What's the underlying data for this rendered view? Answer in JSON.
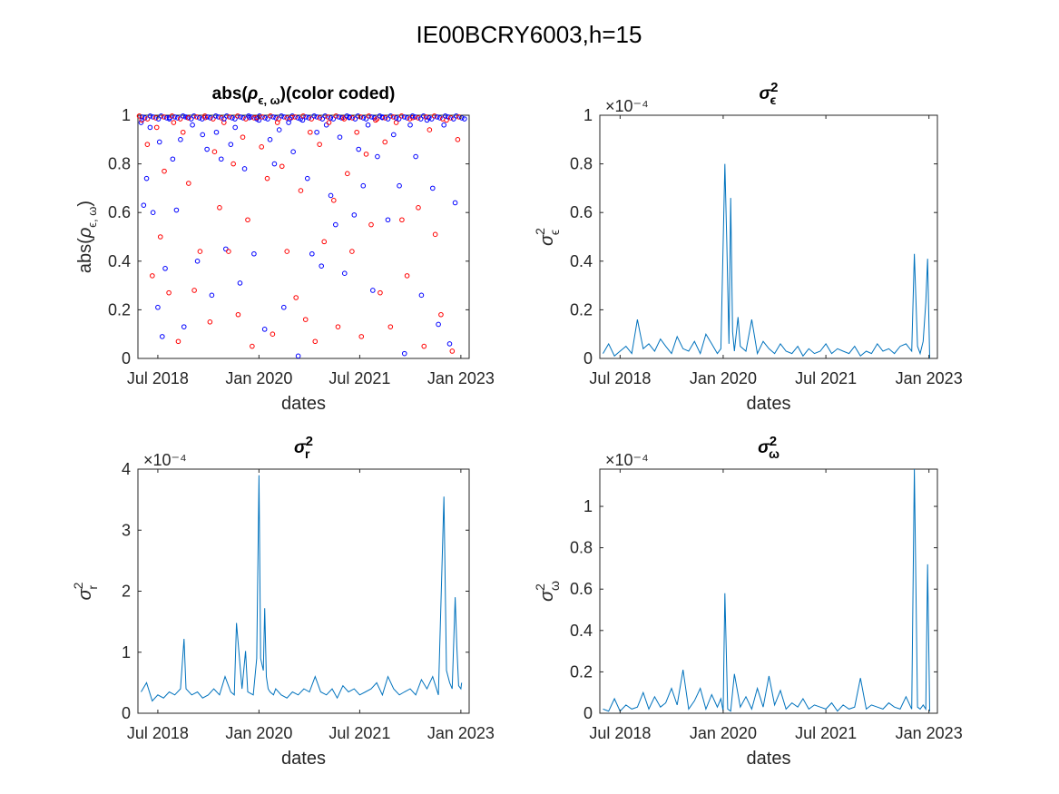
{
  "figure": {
    "suptitle": "IE00BCRY6003,h=15",
    "series_color": "#0072BD",
    "scatter_colors": {
      "high": "#0000FF",
      "low": "#FF0000"
    },
    "xlabel": "dates",
    "x_ticks": [
      "Jul 2018",
      "Jan 2020",
      "Jul 2021",
      "Jan 2023"
    ]
  },
  "chart_data": [
    {
      "id": "rho",
      "type": "scatter",
      "title": "abs(ρϵ, ω)(color coded)",
      "xlabel": "dates",
      "ylabel": "abs(ρϵ, ω)",
      "x_range": [
        "2018-03-15",
        "2023-02-15"
      ],
      "x_ticks": [
        "Jul 2018",
        "Jan 2020",
        "Jul 2021",
        "Jan 2023"
      ],
      "ylim": [
        0,
        1
      ],
      "y_ticks": [
        "0",
        "0.2",
        "0.4",
        "0.6",
        "0.8",
        "1"
      ],
      "exponent_label": "",
      "series": [
        {
          "color": "blue",
          "x": [
            "2018-04-01",
            "2018-04-15",
            "2018-05-01",
            "2018-05-20",
            "2018-06-05",
            "2018-07-01",
            "2018-07-10",
            "2018-07-25",
            "2018-08-10",
            "2018-09-01",
            "2018-09-20",
            "2018-10-10",
            "2018-11-01",
            "2018-11-20",
            "2018-12-10",
            "2019-01-05",
            "2019-02-01",
            "2019-03-01",
            "2019-03-25",
            "2019-04-20",
            "2019-05-15",
            "2019-06-10",
            "2019-07-05",
            "2019-08-01",
            "2019-08-25",
            "2019-09-20",
            "2019-10-15",
            "2019-11-10",
            "2019-12-05",
            "2020-01-01",
            "2020-02-01",
            "2020-03-01",
            "2020-03-25",
            "2020-04-20",
            "2020-05-15",
            "2020-06-10",
            "2020-07-05",
            "2020-08-01",
            "2020-08-25",
            "2020-09-20",
            "2020-10-15",
            "2020-11-10",
            "2020-12-05",
            "2021-01-01",
            "2021-01-25",
            "2021-02-20",
            "2021-03-15",
            "2021-04-10",
            "2021-05-05",
            "2021-06-01",
            "2021-06-25",
            "2021-07-20",
            "2021-08-15",
            "2021-09-10",
            "2021-10-05",
            "2021-11-01",
            "2021-12-01",
            "2022-01-01",
            "2022-02-01",
            "2022-03-01",
            "2022-04-01",
            "2022-05-01",
            "2022-06-01",
            "2022-07-01",
            "2022-08-01",
            "2022-09-01",
            "2022-10-01",
            "2022-11-01",
            "2022-12-01"
          ],
          "y": [
            0.97,
            0.63,
            0.74,
            0.95,
            0.6,
            0.21,
            0.89,
            0.09,
            0.37,
            0.99,
            0.82,
            0.61,
            0.9,
            0.13,
            0.99,
            0.96,
            0.4,
            0.92,
            0.86,
            0.26,
            0.93,
            0.82,
            0.45,
            0.88,
            0.95,
            0.31,
            0.78,
            0.99,
            0.43,
            0.98,
            0.12,
            0.9,
            0.8,
            0.94,
            0.21,
            0.97,
            0.85,
            0.01,
            0.98,
            0.74,
            0.43,
            0.93,
            0.38,
            0.96,
            0.67,
            0.55,
            0.91,
            0.35,
            0.99,
            0.59,
            0.86,
            0.71,
            0.96,
            0.28,
            0.83,
            0.99,
            0.57,
            0.92,
            0.71,
            0.02,
            0.96,
            0.83,
            0.26,
            0.98,
            0.7,
            0.14,
            0.96,
            0.06,
            0.64
          ]
        },
        {
          "color": "red",
          "x": [
            "2018-04-05",
            "2018-05-05",
            "2018-06-01",
            "2018-06-25",
            "2018-07-15",
            "2018-08-05",
            "2018-08-30",
            "2018-09-25",
            "2018-10-20",
            "2018-11-15",
            "2018-12-15",
            "2019-01-15",
            "2019-02-15",
            "2019-03-15",
            "2019-04-10",
            "2019-05-05",
            "2019-06-01",
            "2019-06-25",
            "2019-07-20",
            "2019-08-15",
            "2019-09-10",
            "2019-10-05",
            "2019-11-01",
            "2019-11-25",
            "2019-12-20",
            "2020-01-15",
            "2020-02-15",
            "2020-03-15",
            "2020-04-10",
            "2020-05-05",
            "2020-06-01",
            "2020-06-25",
            "2020-07-20",
            "2020-08-15",
            "2020-09-10",
            "2020-10-05",
            "2020-11-01",
            "2020-11-25",
            "2020-12-20",
            "2021-01-15",
            "2021-02-10",
            "2021-03-05",
            "2021-04-01",
            "2021-04-25",
            "2021-05-20",
            "2021-06-15",
            "2021-07-10",
            "2021-08-05",
            "2021-09-01",
            "2021-09-25",
            "2021-10-20",
            "2021-11-15",
            "2021-12-15",
            "2022-01-15",
            "2022-02-15",
            "2022-03-15",
            "2022-04-15",
            "2022-05-15",
            "2022-06-15",
            "2022-07-15",
            "2022-08-15",
            "2022-09-15",
            "2022-10-15",
            "2022-11-15",
            "2022-12-15"
          ],
          "y": [
            0.98,
            0.88,
            0.34,
            0.95,
            0.5,
            0.77,
            0.27,
            0.97,
            0.07,
            0.93,
            0.72,
            0.28,
            0.44,
            0.99,
            0.15,
            0.85,
            0.62,
            0.97,
            0.44,
            0.8,
            0.18,
            0.91,
            0.57,
            0.05,
            0.99,
            0.87,
            0.74,
            0.1,
            0.97,
            0.79,
            0.44,
            0.99,
            0.25,
            0.69,
            0.16,
            0.93,
            0.07,
            0.88,
            0.48,
            0.97,
            0.65,
            0.13,
            0.99,
            0.76,
            0.44,
            0.93,
            0.09,
            0.84,
            0.55,
            0.98,
            0.27,
            0.89,
            0.13,
            0.97,
            0.57,
            0.34,
            0.99,
            0.62,
            0.05,
            0.94,
            0.51,
            0.18,
            0.98,
            0.03,
            0.9
          ]
        }
      ],
      "top_band": true
    },
    {
      "id": "sig_eps",
      "type": "line",
      "title": "σ²ϵ",
      "xlabel": "dates",
      "ylabel": "σ²ϵ",
      "x_range": [
        "2018-03-15",
        "2023-02-15"
      ],
      "x_ticks": [
        "Jul 2018",
        "Jan 2020",
        "Jul 2021",
        "Jan 2023"
      ],
      "ylim": [
        0,
        1
      ],
      "y_ticks": [
        "0",
        "0.2",
        "0.4",
        "0.6",
        "0.8",
        "1"
      ],
      "exponent_label": "×10⁻⁴",
      "series": [
        {
          "x": [
            "2018-04-01",
            "2018-05-01",
            "2018-06-01",
            "2018-07-01",
            "2018-08-01",
            "2018-09-01",
            "2018-10-01",
            "2018-11-01",
            "2018-12-01",
            "2019-01-01",
            "2019-02-01",
            "2019-03-01",
            "2019-04-01",
            "2019-05-01",
            "2019-06-01",
            "2019-07-01",
            "2019-08-01",
            "2019-09-01",
            "2019-10-01",
            "2019-11-01",
            "2019-12-01",
            "2019-12-20",
            "2020-01-10",
            "2020-01-20",
            "2020-02-01",
            "2020-02-10",
            "2020-02-20",
            "2020-03-01",
            "2020-03-20",
            "2020-04-01",
            "2020-05-01",
            "2020-06-01",
            "2020-07-01",
            "2020-08-01",
            "2020-09-01",
            "2020-10-01",
            "2020-11-01",
            "2020-12-01",
            "2021-01-01",
            "2021-02-01",
            "2021-03-01",
            "2021-04-01",
            "2021-05-01",
            "2021-06-01",
            "2021-07-01",
            "2021-08-01",
            "2021-09-01",
            "2021-10-01",
            "2021-11-01",
            "2021-12-01",
            "2022-01-01",
            "2022-02-01",
            "2022-03-01",
            "2022-04-01",
            "2022-05-01",
            "2022-06-01",
            "2022-07-01",
            "2022-08-01",
            "2022-09-01",
            "2022-10-01",
            "2022-10-15",
            "2022-11-01",
            "2022-11-15",
            "2022-12-01",
            "2022-12-15",
            "2022-12-25",
            "2023-01-05"
          ],
          "y": [
            0.02,
            0.06,
            0.01,
            0.03,
            0.05,
            0.02,
            0.16,
            0.04,
            0.06,
            0.03,
            0.08,
            0.05,
            0.02,
            0.09,
            0.04,
            0.03,
            0.07,
            0.02,
            0.1,
            0.06,
            0.02,
            0.04,
            0.8,
            0.48,
            0.06,
            0.66,
            0.11,
            0.03,
            0.17,
            0.05,
            0.03,
            0.16,
            0.02,
            0.07,
            0.04,
            0.02,
            0.06,
            0.03,
            0.02,
            0.05,
            0.01,
            0.04,
            0.02,
            0.03,
            0.06,
            0.02,
            0.04,
            0.03,
            0.02,
            0.05,
            0.01,
            0.03,
            0.02,
            0.06,
            0.03,
            0.04,
            0.02,
            0.05,
            0.06,
            0.03,
            0.43,
            0.05,
            0.02,
            0.07,
            0.23,
            0.41,
            0.0
          ]
        }
      ]
    },
    {
      "id": "sig_r",
      "type": "line",
      "title": "σ²r",
      "xlabel": "dates",
      "ylabel": "σ²r",
      "x_range": [
        "2018-03-15",
        "2023-02-15"
      ],
      "x_ticks": [
        "Jul 2018",
        "Jan 2020",
        "Jul 2021",
        "Jan 2023"
      ],
      "ylim": [
        0,
        4
      ],
      "y_ticks": [
        "0",
        "1",
        "2",
        "3",
        "4"
      ],
      "exponent_label": "×10⁻⁴",
      "series": [
        {
          "x": [
            "2018-04-01",
            "2018-05-01",
            "2018-06-01",
            "2018-07-01",
            "2018-08-01",
            "2018-09-01",
            "2018-10-01",
            "2018-11-01",
            "2018-11-20",
            "2018-12-01",
            "2019-01-01",
            "2019-02-01",
            "2019-03-01",
            "2019-04-01",
            "2019-05-01",
            "2019-06-01",
            "2019-07-01",
            "2019-08-01",
            "2019-08-20",
            "2019-09-01",
            "2019-10-01",
            "2019-10-20",
            "2019-11-01",
            "2019-12-01",
            "2019-12-20",
            "2020-01-01",
            "2020-01-10",
            "2020-01-25",
            "2020-02-01",
            "2020-02-10",
            "2020-02-20",
            "2020-03-01",
            "2020-03-20",
            "2020-04-01",
            "2020-05-01",
            "2020-06-01",
            "2020-07-01",
            "2020-08-01",
            "2020-09-01",
            "2020-10-01",
            "2020-11-01",
            "2020-12-01",
            "2021-01-01",
            "2021-02-01",
            "2021-03-01",
            "2021-04-01",
            "2021-05-01",
            "2021-06-01",
            "2021-07-01",
            "2021-08-01",
            "2021-09-01",
            "2021-10-01",
            "2021-11-01",
            "2021-12-01",
            "2022-01-01",
            "2022-02-01",
            "2022-03-01",
            "2022-04-01",
            "2022-05-01",
            "2022-06-01",
            "2022-07-01",
            "2022-08-01",
            "2022-09-01",
            "2022-10-01",
            "2022-10-15",
            "2022-11-01",
            "2022-11-15",
            "2022-12-01",
            "2022-12-10",
            "2022-12-20",
            "2023-01-01",
            "2023-01-05"
          ],
          "y": [
            0.35,
            0.5,
            0.2,
            0.3,
            0.25,
            0.35,
            0.3,
            0.4,
            1.22,
            0.4,
            0.3,
            0.35,
            0.25,
            0.3,
            0.4,
            0.3,
            0.6,
            0.35,
            0.3,
            1.48,
            0.4,
            1.02,
            0.35,
            0.3,
            0.9,
            3.9,
            0.9,
            0.7,
            1.72,
            0.6,
            0.4,
            0.35,
            0.3,
            0.4,
            0.3,
            0.25,
            0.35,
            0.3,
            0.4,
            0.35,
            0.6,
            0.35,
            0.3,
            0.4,
            0.25,
            0.45,
            0.35,
            0.4,
            0.3,
            0.35,
            0.4,
            0.5,
            0.3,
            0.6,
            0.4,
            0.3,
            0.35,
            0.4,
            0.3,
            0.55,
            0.4,
            0.6,
            0.3,
            3.55,
            0.7,
            0.5,
            0.4,
            1.9,
            1.1,
            0.45,
            0.4,
            0.5
          ]
        }
      ]
    },
    {
      "id": "sig_omega",
      "type": "line",
      "title": "σ²ω",
      "xlabel": "dates",
      "ylabel": "σ²ω",
      "x_range": [
        "2018-03-15",
        "2023-02-15"
      ],
      "x_ticks": [
        "Jul 2018",
        "Jan 2020",
        "Jul 2021",
        "Jan 2023"
      ],
      "ylim": [
        0,
        1.18
      ],
      "y_ticks": [
        "0",
        "0.2",
        "0.4",
        "0.6",
        "0.8",
        "1"
      ],
      "exponent_label": "×10⁻⁴",
      "series": [
        {
          "x": [
            "2018-04-01",
            "2018-05-01",
            "2018-06-01",
            "2018-07-01",
            "2018-08-01",
            "2018-09-01",
            "2018-10-01",
            "2018-11-01",
            "2018-12-01",
            "2019-01-01",
            "2019-02-01",
            "2019-03-01",
            "2019-04-01",
            "2019-05-01",
            "2019-06-01",
            "2019-07-01",
            "2019-08-01",
            "2019-09-01",
            "2019-10-01",
            "2019-11-01",
            "2019-12-01",
            "2019-12-20",
            "2020-01-01",
            "2020-01-10",
            "2020-01-25",
            "2020-02-10",
            "2020-03-01",
            "2020-04-01",
            "2020-05-01",
            "2020-06-01",
            "2020-07-01",
            "2020-08-01",
            "2020-09-01",
            "2020-10-01",
            "2020-11-01",
            "2020-12-01",
            "2021-01-01",
            "2021-02-01",
            "2021-03-01",
            "2021-04-01",
            "2021-05-01",
            "2021-06-01",
            "2021-07-01",
            "2021-08-01",
            "2021-09-01",
            "2021-10-01",
            "2021-11-01",
            "2021-12-01",
            "2022-01-01",
            "2022-02-01",
            "2022-03-01",
            "2022-04-01",
            "2022-05-01",
            "2022-06-01",
            "2022-07-01",
            "2022-08-01",
            "2022-09-01",
            "2022-10-01",
            "2022-10-15",
            "2022-11-01",
            "2022-11-15",
            "2022-12-01",
            "2022-12-15",
            "2022-12-25",
            "2023-01-05"
          ],
          "y": [
            0.02,
            0.01,
            0.07,
            0.01,
            0.04,
            0.02,
            0.03,
            0.1,
            0.02,
            0.08,
            0.03,
            0.05,
            0.12,
            0.04,
            0.21,
            0.02,
            0.06,
            0.12,
            0.02,
            0.09,
            0.03,
            0.07,
            0.01,
            0.58,
            0.02,
            0.01,
            0.19,
            0.03,
            0.08,
            0.02,
            0.12,
            0.03,
            0.18,
            0.04,
            0.11,
            0.02,
            0.05,
            0.03,
            0.07,
            0.02,
            0.04,
            0.03,
            0.02,
            0.05,
            0.01,
            0.04,
            0.02,
            0.03,
            0.17,
            0.02,
            0.04,
            0.03,
            0.02,
            0.05,
            0.03,
            0.02,
            0.08,
            0.02,
            1.18,
            0.03,
            0.02,
            0.04,
            0.02,
            0.72,
            0.01
          ]
        }
      ]
    }
  ]
}
